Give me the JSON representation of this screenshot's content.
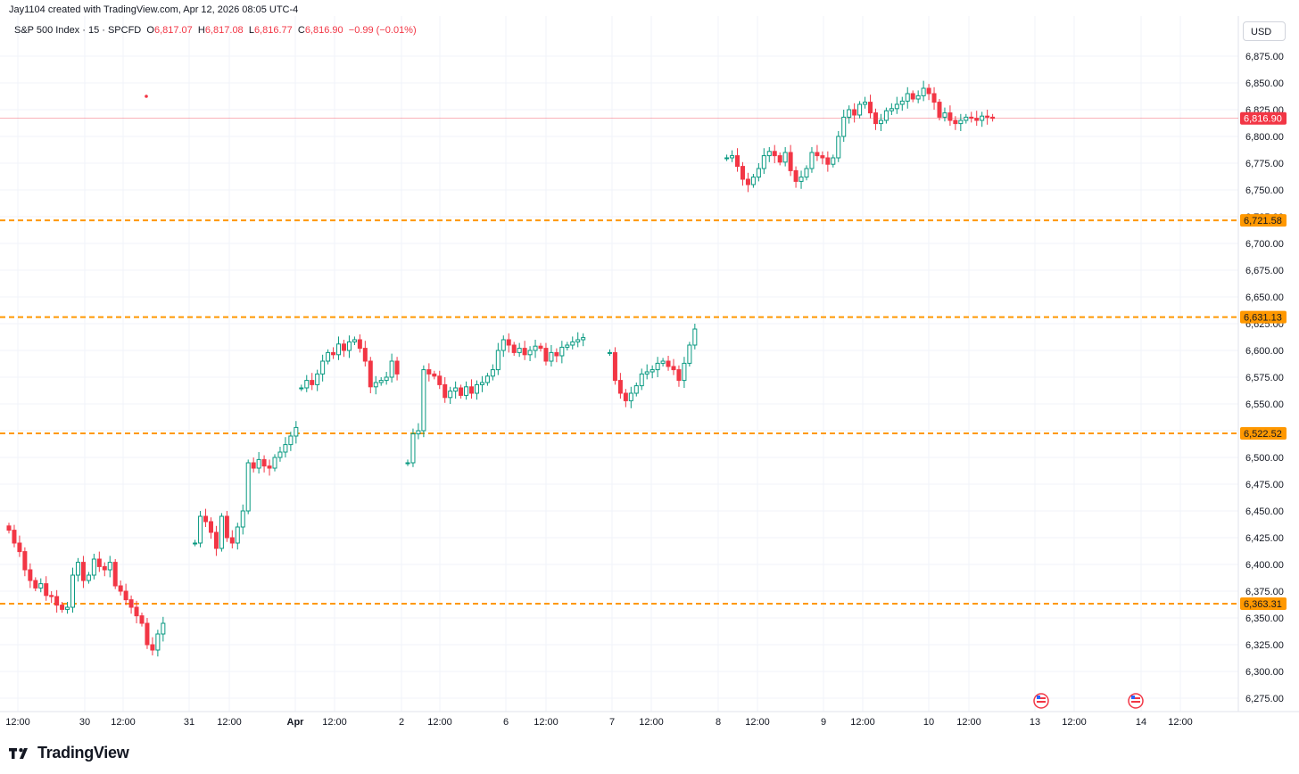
{
  "header": {
    "credit": "Jay1104 created with TradingView.com, Apr 12, 2026 08:05 UTC-4"
  },
  "legend": {
    "symbol": "S&P 500 Index · 15 · SPCFD",
    "o_label": "O",
    "o_value": "6,817.07",
    "h_label": "H",
    "h_value": "6,817.08",
    "l_label": "L",
    "l_value": "6,816.77",
    "c_label": "C",
    "c_value": "6,816.90",
    "change": "−0.99 (−0.01%)"
  },
  "currency": "USD",
  "brand": {
    "name": "TradingView",
    "icon": "tradingview-logo-icon"
  },
  "colors": {
    "up": "#089981",
    "down": "#f23645",
    "level": "#ff9800",
    "grid": "#f0f3fa"
  },
  "chart_data": {
    "type": "candlestick",
    "title": "S&P 500 Index · 15 · SPCFD",
    "ylim": [
      6260,
      6900
    ],
    "y_ticks": [
      "6,275.00",
      "6,300.00",
      "6,325.00",
      "6,350.00",
      "6,375.00",
      "6,400.00",
      "6,425.00",
      "6,450.00",
      "6,475.00",
      "6,500.00",
      "6,525.00",
      "6,550.00",
      "6,575.00",
      "6,600.00",
      "6,625.00",
      "6,650.00",
      "6,675.00",
      "6,700.00",
      "6,725.00",
      "6,750.00",
      "6,775.00",
      "6,800.00",
      "6,825.00",
      "6,850.00",
      "6,875.00"
    ],
    "y_tick_values": [
      6275,
      6300,
      6325,
      6350,
      6375,
      6400,
      6425,
      6450,
      6475,
      6500,
      6525,
      6550,
      6575,
      6600,
      6625,
      6650,
      6675,
      6700,
      6725,
      6750,
      6775,
      6800,
      6825,
      6850,
      6875
    ],
    "x_ticks": [
      "12:00",
      "30",
      "12:00",
      "31",
      "12:00",
      "Apr",
      "12:00",
      "2",
      "12:00",
      "6",
      "12:00",
      "7",
      "12:00",
      "8",
      "12:00",
      "9",
      "12:00",
      "10",
      "12:00",
      "13",
      "12:00",
      "14",
      "12:00"
    ],
    "x_tick_bold": [
      false,
      false,
      false,
      false,
      false,
      true,
      false,
      false,
      false,
      false,
      false,
      false,
      false,
      false,
      false,
      false,
      false,
      false,
      false,
      false,
      false,
      false,
      false
    ],
    "sessions": [
      {
        "start": 0,
        "closes": [
          6432,
          6420,
          6412,
          6395,
          6385,
          6378,
          6382,
          6371,
          6370,
          6362,
          6358,
          6360,
          6390,
          6402,
          6385,
          6390,
          6405,
          6398,
          6395,
          6402,
          6380,
          6375,
          6367,
          6360,
          6352,
          6345,
          6325,
          6320,
          6335,
          6345
        ]
      },
      {
        "start": 35,
        "closes": [
          6420,
          6445,
          6440,
          6430,
          6415,
          6445,
          6425,
          6420,
          6435,
          6450,
          6495,
          6490,
          6498,
          6492,
          6490,
          6500,
          6505,
          6512,
          6520,
          6528
        ]
      },
      {
        "start": 55,
        "closes": [
          6565,
          6572,
          6568,
          6578,
          6590,
          6598,
          6596,
          6606,
          6600,
          6608,
          6610,
          6602,
          6590,
          6566,
          6570,
          6572,
          6575,
          6590,
          6578
        ]
      },
      {
        "start": 75,
        "closes": [
          6495,
          6522,
          6525,
          6582,
          6578,
          6576,
          6568,
          6556,
          6562,
          6565,
          6558,
          6566,
          6560,
          6568,
          6570,
          6576,
          6582,
          6600,
          6610,
          6605,
          6598,
          6602,
          6596,
          6600,
          6604,
          6602,
          6590,
          6598,
          6595,
          6603,
          6605,
          6608,
          6610,
          6612
        ]
      },
      {
        "start": 113,
        "closes": [
          6598,
          6572,
          6560,
          6553,
          6560,
          6567,
          6578,
          6580,
          6582,
          6588,
          6590,
          6585,
          6582,
          6572,
          6588,
          6605,
          6620
        ]
      },
      {
        "start": 135,
        "closes": [
          6780,
          6782,
          6772,
          6760,
          6755,
          6762,
          6770,
          6782,
          6786,
          6782,
          6776,
          6785,
          6768,
          6758,
          6762,
          6770,
          6785,
          6782,
          6780,
          6774,
          6780,
          6800,
          6818,
          6825,
          6820,
          6830,
          6832,
          6822,
          6812,
          6815,
          6824,
          6826,
          6830,
          6833,
          6840,
          6835,
          6838,
          6845,
          6840,
          6832,
          6818,
          6822,
          6815,
          6812,
          6815,
          6818,
          6817,
          6815,
          6819,
          6818,
          6816.9
        ]
      }
    ],
    "levels": [
      6721.58,
      6631.13,
      6522.52,
      6363.31
    ],
    "level_labels": [
      "6,721.58",
      "6,631.13",
      "6,522.52",
      "6,363.31"
    ],
    "last_price": 6816.9,
    "last_price_label": "6,816.90"
  }
}
